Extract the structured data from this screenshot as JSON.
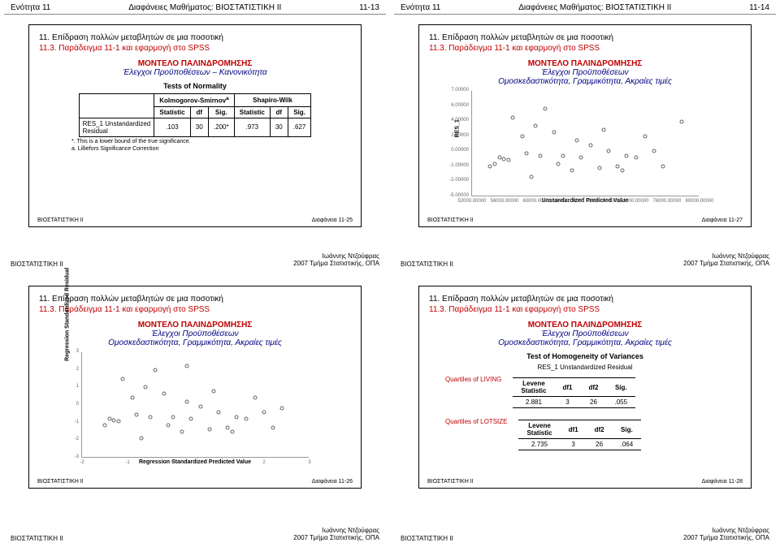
{
  "pages": {
    "topLeft": {
      "header_l": "Ενότητα 11",
      "header_c": "Διαφάνειες Μαθήματος: ΒΙΟΣΤΑΤΙΣΤΙΚΗ ΙΙ",
      "header_r": "11-13"
    },
    "topRight": {
      "header_l": "Ενότητα 11",
      "header_c": "Διαφάνειες Μαθήματος: ΒΙΟΣΤΑΤΙΣΤΙΚΗ ΙΙ",
      "header_r": "11-14"
    }
  },
  "slide": {
    "title": "11. Επίδραση πολλών μεταβλητών σε μια ποσοτική",
    "subtitle": "11.3. Παράδειγμα 11-1 και εφαρμογή στο SPSS",
    "model_heading": "ΜΟΝΤΕΛΟ ΠΑΛΙΝΔΡΟΜΗΣΗΣ",
    "model_sub_normality": "Έλεγχοι Προϋποθέσεων – Κανονικότητα",
    "model_sub_homog": "Έλεγχοι Προϋποθέσεων\nΟμοσκεδαστικότητα, Γραμμικότητα, Ακραίες τιμές"
  },
  "normality": {
    "title": "Tests of Normality",
    "group1": "Kolmogorov-Smirnov",
    "group1_sup": "a",
    "group2": "Shapiro-Wilk",
    "cols": [
      "Statistic",
      "df",
      "Sig.",
      "Statistic",
      "df",
      "Sig."
    ],
    "rowlabel": "RES_1 Unstandardized\nResidual",
    "row": [
      ".103",
      "30",
      ".200*",
      ".973",
      "30",
      ".627"
    ],
    "foot1": "*. This is a lower bound of the true significance.",
    "foot2": "a. Lilliefors Significance Correction"
  },
  "scatter1": {
    "ylabel": "RES_1",
    "xlabel": "Unstandardized Predicted Value",
    "xticks": [
      "52000.00000",
      "56000.00000",
      "60000.00000",
      "64000.00000",
      "68000.00000",
      "72000.00000",
      "76000.00000",
      "80000.00000"
    ],
    "yticks": [
      "-5.00000",
      "-2.00000",
      "-1.00000",
      "0.00000",
      "2.00000",
      "4.00000",
      "6.00000",
      "7.00000"
    ],
    "points": [
      [
        8,
        28
      ],
      [
        10,
        30
      ],
      [
        12,
        36
      ],
      [
        14,
        35
      ],
      [
        16,
        34
      ],
      [
        18,
        74
      ],
      [
        22,
        56
      ],
      [
        24,
        40
      ],
      [
        26,
        18
      ],
      [
        28,
        66
      ],
      [
        30,
        38
      ],
      [
        32,
        82
      ],
      [
        36,
        60
      ],
      [
        38,
        30
      ],
      [
        40,
        38
      ],
      [
        44,
        24
      ],
      [
        46,
        52
      ],
      [
        48,
        36
      ],
      [
        52,
        48
      ],
      [
        56,
        26
      ],
      [
        58,
        62
      ],
      [
        60,
        42
      ],
      [
        64,
        28
      ],
      [
        66,
        24
      ],
      [
        68,
        38
      ],
      [
        72,
        36
      ],
      [
        76,
        56
      ],
      [
        80,
        42
      ],
      [
        84,
        28
      ],
      [
        92,
        70
      ]
    ]
  },
  "scatter2": {
    "ylabel": "Regression Standardized Residual",
    "xlabel": "Regression Standardized Predicted Value",
    "xticks": [
      "-2",
      "-1",
      "0",
      "1",
      "2",
      "3"
    ],
    "yticks": [
      "-3",
      "-2",
      "-1",
      "0",
      "1",
      "2",
      "3"
    ],
    "points": [
      [
        10,
        30
      ],
      [
        12,
        36
      ],
      [
        14,
        35
      ],
      [
        16,
        34
      ],
      [
        18,
        74
      ],
      [
        22,
        56
      ],
      [
        24,
        40
      ],
      [
        26,
        18
      ],
      [
        28,
        66
      ],
      [
        30,
        38
      ],
      [
        32,
        82
      ],
      [
        36,
        60
      ],
      [
        38,
        30
      ],
      [
        40,
        38
      ],
      [
        44,
        24
      ],
      [
        46,
        52
      ],
      [
        48,
        36
      ],
      [
        52,
        48
      ],
      [
        56,
        26
      ],
      [
        58,
        62
      ],
      [
        60,
        42
      ],
      [
        64,
        28
      ],
      [
        66,
        24
      ],
      [
        68,
        38
      ],
      [
        72,
        36
      ],
      [
        76,
        56
      ],
      [
        80,
        42
      ],
      [
        84,
        28
      ],
      [
        88,
        46
      ],
      [
        46,
        86
      ]
    ]
  },
  "homogeneity": {
    "title": "Test of Homogeneity of Variances",
    "res_label": "RES_1 Unstandardized Residual",
    "q1": "Quartiles of LIVING",
    "q2": "Quartiles of LOTSIZE",
    "cols": [
      "Levene\nStatistic",
      "df1",
      "df2",
      "Sig."
    ],
    "row1": [
      "2.881",
      "3",
      "26",
      ".055"
    ],
    "row2": [
      "2.735",
      "3",
      "26",
      ".064"
    ]
  },
  "slide_footers": {
    "s25": {
      "l": "ΒΙΟΣΤΑΤΙΣΤΙΚΗ ΙΙ",
      "r": "Διαφάνεια 11-25"
    },
    "s26": {
      "l": "ΒΙΟΣΤΑΤΙΣΤΙΚΗ ΙΙ",
      "r": "Διαφάνεια 11-26"
    },
    "s27": {
      "l": "ΒΙΟΣΤΑΤΙΣΤΙΚΗ ΙΙ",
      "r": "Διαφάνεια 11-27"
    },
    "s28": {
      "l": "ΒΙΟΣΤΑΤΙΣΤΙΚΗ ΙΙ",
      "r": "Διαφάνεια 11-28"
    }
  },
  "page_footer": {
    "left": "ΒΙΟΣΤΑΤΙΣΤΙΚΗ ΙΙ",
    "right1": "Ιωάννης Ντζούφρας",
    "right2": "2007 Τμήμα Στατιστικής, ΟΠΑ"
  }
}
